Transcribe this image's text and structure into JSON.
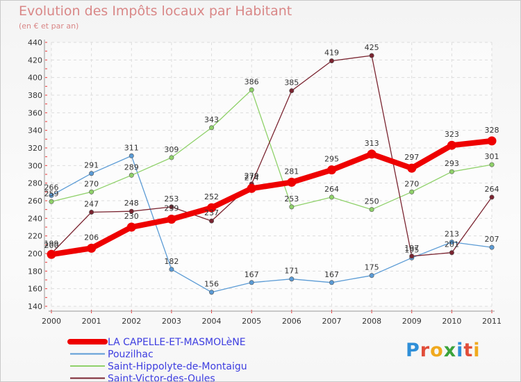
{
  "chart_data": {
    "type": "line",
    "title": "Evolution des Impôts locaux par Habitant",
    "subtitle": "(en € et par an)",
    "categories": [
      "2000",
      "2001",
      "2002",
      "2003",
      "2004",
      "2005",
      "2006",
      "2007",
      "2008",
      "2009",
      "2010",
      "2011"
    ],
    "ylim": [
      140,
      440
    ],
    "yticks": [
      140,
      160,
      180,
      200,
      220,
      240,
      260,
      280,
      300,
      320,
      340,
      360,
      380,
      400,
      420,
      440
    ],
    "grid": true,
    "legend_position": "bottom-left",
    "series": [
      {
        "name": "LA CAPELLE-ET-MASMOLèNE",
        "color": "#ee0000",
        "bold": true,
        "values": [
          199,
          206,
          230,
          239,
          252,
          274,
          281,
          295,
          313,
          297,
          323,
          328
        ]
      },
      {
        "name": "Pouzilhac",
        "color": "#5b9bd5",
        "bold": false,
        "values": [
          266,
          291,
          311,
          182,
          156,
          167,
          171,
          167,
          175,
          195,
          213,
          207
        ]
      },
      {
        "name": "Saint-Hippolyte-de-Montaigu",
        "color": "#8fd16a",
        "bold": false,
        "values": [
          259,
          270,
          289,
          309,
          343,
          386,
          253,
          264,
          250,
          270,
          293,
          301
        ]
      },
      {
        "name": "Saint-Victor-des-Oules",
        "color": "#7a2430",
        "bold": false,
        "values": [
          200,
          247,
          248,
          253,
          237,
          279,
          385,
          419,
          425,
          197,
          201,
          264
        ]
      }
    ]
  },
  "logo": {
    "text": "Proxiti",
    "colors": [
      "#2f8fd8",
      "#e14d3a",
      "#f0a91e",
      "#3ba33b"
    ]
  }
}
